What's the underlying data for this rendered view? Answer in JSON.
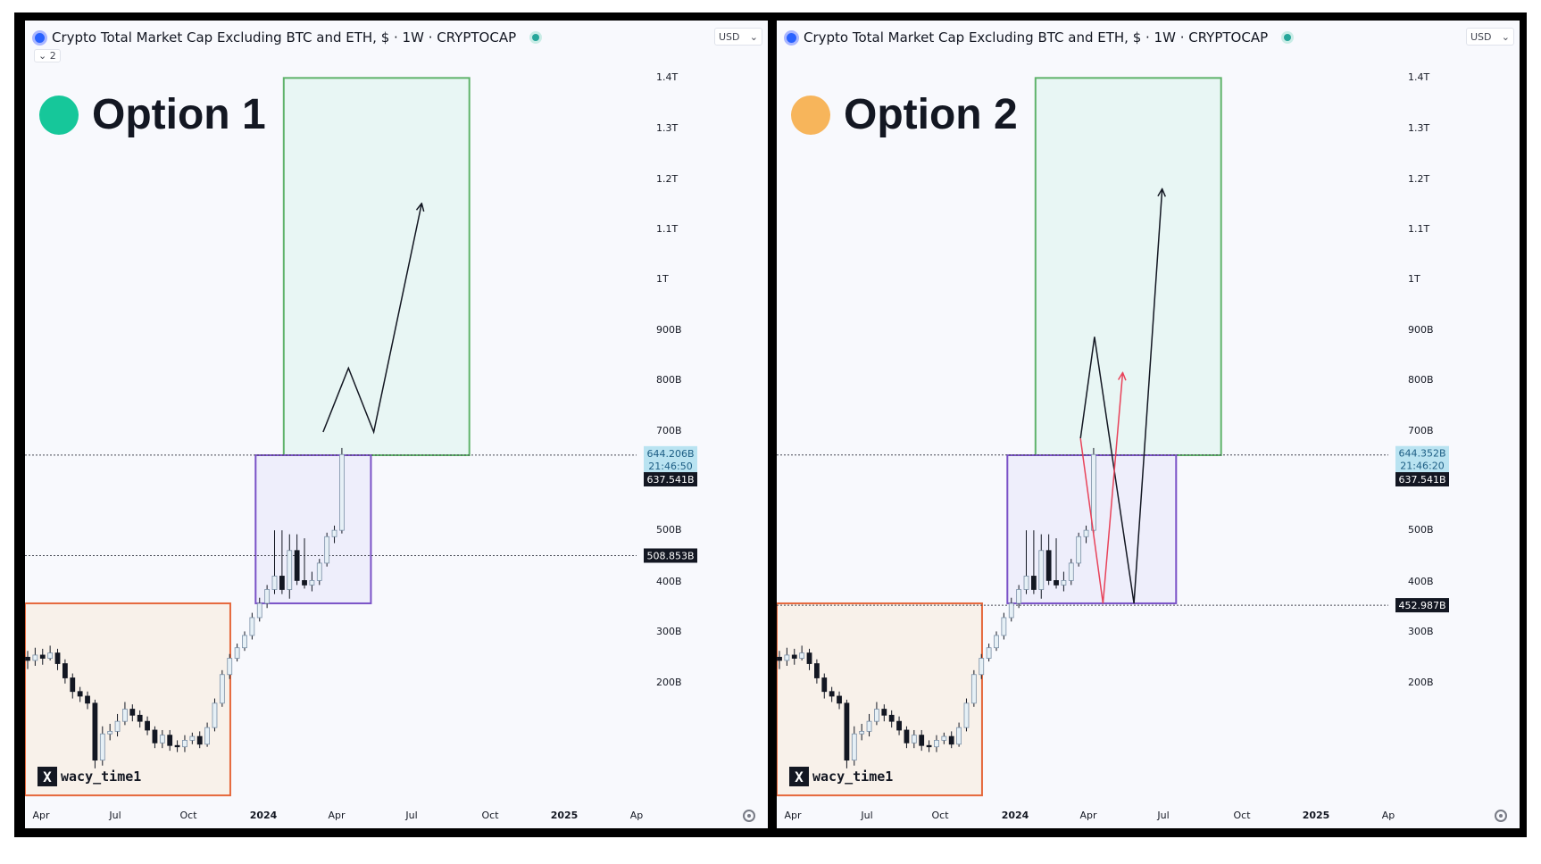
{
  "panels": [
    {
      "symbol_title": "Crypto Total Market Cap Excluding BTC and ETH, $ · 1W · CRYPTOCAP",
      "indicator_toggle": "⌄ 2",
      "currency_label": "USD",
      "currency_caret": "⌄",
      "option_label": "Option 1",
      "option_color": "#16c79a",
      "watermark_handle": "wacy_time1",
      "watermark_logo": "X"
    },
    {
      "symbol_title": "Crypto Total Market Cap Excluding BTC and ETH, $ · 1W · CRYPTOCAP",
      "indicator_toggle": "",
      "currency_label": "USD",
      "currency_caret": "⌄",
      "option_label": "Option 2",
      "option_color": "#f7b55b",
      "watermark_handle": "wacy_time1",
      "watermark_logo": "X"
    }
  ],
  "chart_data": [
    {
      "type": "candlestick",
      "timeframe": "1W",
      "x_ticks": [
        "Apr",
        "Jul",
        "Oct",
        "2024",
        "Apr",
        "Jul",
        "Oct",
        "2025",
        "Ap"
      ],
      "y_ticks": [
        "1.4T",
        "1.3T",
        "1.2T",
        "1.1T",
        "1T",
        "900B",
        "800B",
        "700B",
        "500B",
        "400B",
        "300B",
        "200B"
      ],
      "price_tags": [
        {
          "label": "644.206B",
          "sub": "21:46:50",
          "value": 644.2,
          "style": "current"
        },
        {
          "label": "637.541B",
          "value": 637.5,
          "style": "dark"
        },
        {
          "label": "508.853B",
          "value": 508.9,
          "style": "dark"
        }
      ],
      "reference_lines": [
        644.2,
        508.9
      ],
      "zones": [
        {
          "kind": "target",
          "t_start": 46,
          "t_end": 79,
          "low": 644,
          "high": 1560,
          "fill": "#e8f6f4",
          "stroke": "#5fb36a"
        },
        {
          "kind": "range",
          "t_start": 41,
          "t_end": 61.5,
          "low": 455,
          "high": 644,
          "fill": "#eeeefb",
          "stroke": "#7a52c7"
        },
        {
          "kind": "base",
          "t_start": 0,
          "t_end": 36.5,
          "low": 290,
          "high": 455,
          "fill": "#f8f1ea",
          "stroke": "#e5673b"
        }
      ],
      "projections": [
        {
          "color": "#131722",
          "points": [
            [
              53,
              680
            ],
            [
              57.5,
              790
            ],
            [
              62,
              680
            ],
            [
              70.5,
              1160
            ]
          ],
          "arrow": true
        }
      ],
      "candles": [
        [
          401,
          398,
          407,
          390
        ],
        [
          398,
          403,
          410,
          393
        ],
        [
          403,
          400,
          409,
          394
        ],
        [
          400,
          405,
          412,
          398
        ],
        [
          405,
          395,
          409,
          389
        ],
        [
          395,
          382,
          399,
          377
        ],
        [
          382,
          370,
          386,
          364
        ],
        [
          370,
          366,
          374,
          361
        ],
        [
          366,
          360,
          370,
          355
        ],
        [
          360,
          315,
          363,
          309
        ],
        [
          315,
          335,
          341,
          311
        ],
        [
          335,
          337,
          343,
          330
        ],
        [
          337,
          345,
          351,
          333
        ],
        [
          345,
          355,
          361,
          342
        ],
        [
          355,
          350,
          359,
          345
        ],
        [
          350,
          345,
          354,
          340
        ],
        [
          345,
          338,
          349,
          334
        ],
        [
          338,
          328,
          341,
          324
        ],
        [
          328,
          334,
          338,
          324
        ],
        [
          334,
          326,
          338,
          322
        ],
        [
          326,
          325,
          330,
          321
        ],
        [
          325,
          330,
          334,
          321
        ],
        [
          330,
          333,
          336,
          327
        ],
        [
          333,
          327,
          337,
          324
        ],
        [
          327,
          340,
          344,
          325
        ],
        [
          340,
          360,
          364,
          337
        ],
        [
          360,
          385,
          389,
          357
        ],
        [
          385,
          400,
          404,
          381
        ],
        [
          400,
          410,
          414,
          397
        ],
        [
          410,
          422,
          426,
          407
        ],
        [
          422,
          440,
          445,
          418
        ],
        [
          440,
          455,
          461,
          436
        ],
        [
          455,
          470,
          475,
          450
        ],
        [
          470,
          485,
          540,
          465
        ],
        [
          485,
          470,
          540,
          465
        ],
        [
          470,
          515,
          535,
          460
        ],
        [
          515,
          480,
          535,
          475
        ],
        [
          480,
          475,
          530,
          471
        ],
        [
          475,
          480,
          490,
          468
        ],
        [
          480,
          500,
          505,
          475
        ],
        [
          500,
          532,
          537,
          496
        ],
        [
          532,
          540,
          546,
          524
        ],
        [
          540,
          645,
          655,
          536
        ]
      ],
      "candle_start_t": 0,
      "candle_spacing": 1.33
    },
    {
      "type": "candlestick",
      "timeframe": "1W",
      "x_ticks": [
        "Apr",
        "Jul",
        "Oct",
        "2024",
        "Apr",
        "Jul",
        "Oct",
        "2025",
        "Ap"
      ],
      "y_ticks": [
        "1.4T",
        "1.3T",
        "1.2T",
        "1.1T",
        "1T",
        "900B",
        "800B",
        "700B",
        "500B",
        "400B",
        "300B",
        "200B"
      ],
      "price_tags": [
        {
          "label": "644.352B",
          "sub": "21:46:20",
          "value": 644.4,
          "style": "current"
        },
        {
          "label": "637.541B",
          "value": 637.5,
          "style": "dark"
        },
        {
          "label": "452.987B",
          "value": 453.0,
          "style": "dark"
        }
      ],
      "reference_lines": [
        644.4,
        453.0
      ],
      "zones": [
        {
          "kind": "target",
          "t_start": 46,
          "t_end": 79,
          "low": 644,
          "high": 1560,
          "fill": "#e8f6f4",
          "stroke": "#5fb36a"
        },
        {
          "kind": "range",
          "t_start": 41,
          "t_end": 71,
          "low": 455,
          "high": 644,
          "fill": "#eeeefb",
          "stroke": "#7a52c7"
        },
        {
          "kind": "base",
          "t_start": 0,
          "t_end": 36.5,
          "low": 290,
          "high": 455,
          "fill": "#f8f1ea",
          "stroke": "#e5673b"
        }
      ],
      "projections": [
        {
          "color": "#131722",
          "points": [
            [
              54,
              670
            ],
            [
              56.5,
              850
            ],
            [
              63.5,
              455
            ],
            [
              68.5,
              1200
            ]
          ],
          "arrow": true
        },
        {
          "color": "#e8435a",
          "points": [
            [
              54,
              670
            ],
            [
              58,
              455
            ],
            [
              61.5,
              780
            ]
          ],
          "arrow": true
        }
      ],
      "candles": [
        [
          401,
          398,
          407,
          390
        ],
        [
          398,
          403,
          410,
          393
        ],
        [
          403,
          400,
          409,
          394
        ],
        [
          400,
          405,
          412,
          398
        ],
        [
          405,
          395,
          409,
          389
        ],
        [
          395,
          382,
          399,
          377
        ],
        [
          382,
          370,
          386,
          364
        ],
        [
          370,
          366,
          374,
          361
        ],
        [
          366,
          360,
          370,
          355
        ],
        [
          360,
          315,
          363,
          309
        ],
        [
          315,
          335,
          341,
          311
        ],
        [
          335,
          337,
          343,
          330
        ],
        [
          337,
          345,
          351,
          333
        ],
        [
          345,
          355,
          361,
          342
        ],
        [
          355,
          350,
          359,
          345
        ],
        [
          350,
          345,
          354,
          340
        ],
        [
          345,
          338,
          349,
          334
        ],
        [
          338,
          328,
          341,
          324
        ],
        [
          328,
          334,
          338,
          324
        ],
        [
          334,
          326,
          338,
          322
        ],
        [
          326,
          325,
          330,
          321
        ],
        [
          325,
          330,
          334,
          321
        ],
        [
          330,
          333,
          336,
          327
        ],
        [
          333,
          327,
          337,
          324
        ],
        [
          327,
          340,
          344,
          325
        ],
        [
          340,
          360,
          364,
          337
        ],
        [
          360,
          385,
          389,
          357
        ],
        [
          385,
          400,
          404,
          381
        ],
        [
          400,
          410,
          414,
          397
        ],
        [
          410,
          422,
          426,
          407
        ],
        [
          422,
          440,
          445,
          418
        ],
        [
          440,
          455,
          461,
          436
        ],
        [
          455,
          470,
          475,
          450
        ],
        [
          470,
          485,
          540,
          465
        ],
        [
          485,
          470,
          540,
          465
        ],
        [
          470,
          515,
          535,
          460
        ],
        [
          515,
          480,
          535,
          475
        ],
        [
          480,
          475,
          530,
          471
        ],
        [
          475,
          480,
          490,
          468
        ],
        [
          480,
          500,
          505,
          475
        ],
        [
          500,
          532,
          537,
          496
        ],
        [
          532,
          540,
          546,
          524
        ],
        [
          540,
          645,
          655,
          536
        ]
      ],
      "candle_start_t": 0,
      "candle_spacing": 1.33
    }
  ]
}
